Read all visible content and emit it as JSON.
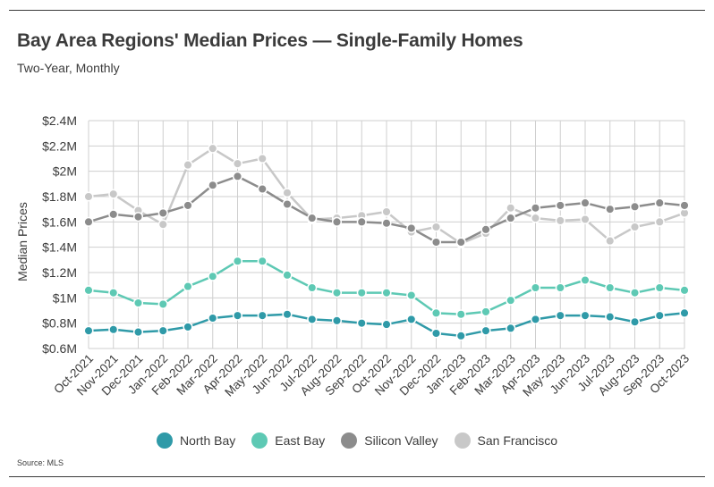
{
  "header": {
    "title": "Bay Area Regions' Median Prices — Single-Family Homes",
    "subtitle": "Two-Year, Monthly"
  },
  "footer": {
    "source": "Source: MLS"
  },
  "chart_data": {
    "type": "line",
    "title": "Bay Area Regions' Median Prices — Single-Family Homes",
    "subtitle": "Two-Year, Monthly",
    "xlabel": "",
    "ylabel": "Median Prices",
    "ylim": [
      0.6,
      2.4
    ],
    "yticks": [
      0.6,
      0.8,
      1.0,
      1.2,
      1.4,
      1.6,
      1.8,
      2.0,
      2.2,
      2.4
    ],
    "ytick_labels": [
      "$0.6M",
      "$0.8M",
      "$1M",
      "$1.2M",
      "$1.4M",
      "$1.6M",
      "$1.8M",
      "$2M",
      "$2.2M",
      "$2.4M"
    ],
    "grid": true,
    "legend_position": "bottom",
    "categories": [
      "Oct-2021",
      "Nov-2021",
      "Dec-2021",
      "Jan-2022",
      "Feb-2022",
      "Mar-2022",
      "Apr-2022",
      "May-2022",
      "Jun-2022",
      "Jul-2022",
      "Aug-2022",
      "Sep-2022",
      "Oct-2022",
      "Nov-2022",
      "Dec-2022",
      "Jan-2023",
      "Feb-2023",
      "Mar-2023",
      "Apr-2023",
      "May-2023",
      "Jun-2023",
      "Jul-2023",
      "Aug-2023",
      "Sep-2023",
      "Oct-2023"
    ],
    "series": [
      {
        "name": "North Bay",
        "color": "#2f9aa8",
        "values": [
          0.74,
          0.75,
          0.73,
          0.74,
          0.77,
          0.84,
          0.86,
          0.86,
          0.87,
          0.83,
          0.82,
          0.8,
          0.79,
          0.83,
          0.72,
          0.7,
          0.74,
          0.76,
          0.83,
          0.86,
          0.86,
          0.85,
          0.81,
          0.86,
          0.88
        ]
      },
      {
        "name": "East Bay",
        "color": "#5ec9b4",
        "values": [
          1.06,
          1.04,
          0.96,
          0.95,
          1.09,
          1.17,
          1.29,
          1.29,
          1.18,
          1.08,
          1.04,
          1.04,
          1.04,
          1.02,
          0.88,
          0.87,
          0.89,
          0.98,
          1.08,
          1.08,
          1.14,
          1.08,
          1.04,
          1.08,
          1.06
        ]
      },
      {
        "name": "Silicon Valley",
        "color": "#8c8c8c",
        "values": [
          1.6,
          1.66,
          1.64,
          1.67,
          1.73,
          1.89,
          1.96,
          1.86,
          1.74,
          1.63,
          1.6,
          1.6,
          1.59,
          1.55,
          1.44,
          1.44,
          1.54,
          1.63,
          1.71,
          1.73,
          1.75,
          1.7,
          1.72,
          1.75,
          1.73
        ]
      },
      {
        "name": "San Francisco",
        "color": "#c8c8c8",
        "values": [
          1.8,
          1.82,
          1.69,
          1.58,
          2.05,
          2.18,
          2.06,
          2.1,
          1.83,
          1.62,
          1.63,
          1.65,
          1.68,
          1.52,
          1.56,
          1.43,
          1.51,
          1.71,
          1.63,
          1.61,
          1.62,
          1.45,
          1.56,
          1.6,
          1.67
        ]
      }
    ]
  }
}
